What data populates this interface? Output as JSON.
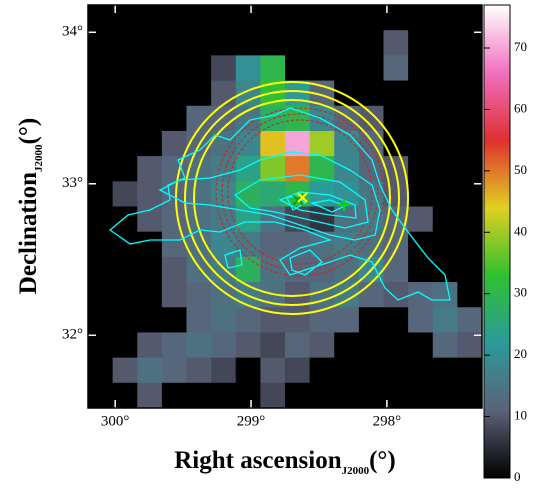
{
  "chart_data": {
    "type": "heatmap",
    "xlabel": "Right ascension",
    "xlabel_sub": "J2000",
    "xlabel_unit": "(°)",
    "ylabel": "Declination",
    "ylabel_sub": "J2000",
    "ylabel_unit": "(°)",
    "xlim": [
      300.2,
      297.3
    ],
    "ylim": [
      31.52,
      34.18
    ],
    "xticks": [
      {
        "value": 300,
        "label": "300°"
      },
      {
        "value": 299,
        "label": "299°"
      },
      {
        "value": 298,
        "label": "298°"
      }
    ],
    "yticks": [
      {
        "value": 32,
        "label": "32°"
      },
      {
        "value": 33,
        "label": "33°"
      },
      {
        "value": 34,
        "label": "34°"
      }
    ],
    "clim": [
      0,
      77
    ],
    "cticks": [
      0,
      10,
      20,
      30,
      40,
      50,
      60,
      70
    ],
    "colormap": [
      "#000000",
      "#5c6278",
      "#2a9a9a",
      "#30c030",
      "#e0d020",
      "#e03030",
      "#f070c0",
      "#ffffff"
    ],
    "z": [
      [
        0,
        0,
        0,
        0,
        0,
        0,
        0,
        0,
        0,
        0,
        0,
        0,
        0,
        0,
        0,
        0
      ],
      [
        0,
        0,
        0,
        0,
        0,
        0,
        0,
        0,
        0,
        0,
        0,
        0,
        10,
        0,
        0,
        0
      ],
      [
        0,
        0,
        0,
        0,
        0,
        8,
        20,
        30,
        0,
        0,
        0,
        0,
        12,
        0,
        0,
        0
      ],
      [
        0,
        0,
        0,
        0,
        0,
        10,
        18,
        32,
        22,
        12,
        0,
        0,
        0,
        0,
        0,
        0
      ],
      [
        0,
        0,
        0,
        0,
        12,
        12,
        15,
        28,
        30,
        18,
        12,
        10,
        0,
        0,
        0,
        0
      ],
      [
        0,
        0,
        0,
        10,
        12,
        14,
        18,
        45,
        70,
        40,
        18,
        12,
        0,
        0,
        0,
        0
      ],
      [
        0,
        0,
        10,
        12,
        14,
        16,
        24,
        38,
        50,
        30,
        18,
        12,
        10,
        0,
        0,
        0
      ],
      [
        0,
        8,
        10,
        12,
        14,
        18,
        28,
        26,
        30,
        22,
        20,
        15,
        10,
        0,
        0,
        0
      ],
      [
        0,
        0,
        10,
        12,
        14,
        16,
        24,
        14,
        8,
        6,
        14,
        16,
        12,
        10,
        0,
        0
      ],
      [
        0,
        0,
        0,
        12,
        14,
        18,
        16,
        12,
        12,
        14,
        16,
        14,
        12,
        0,
        0,
        0
      ],
      [
        0,
        0,
        0,
        10,
        14,
        16,
        28,
        14,
        12,
        12,
        14,
        18,
        12,
        0,
        0,
        0
      ],
      [
        0,
        0,
        0,
        10,
        12,
        14,
        16,
        14,
        10,
        14,
        16,
        12,
        10,
        12,
        14,
        0
      ],
      [
        0,
        0,
        0,
        0,
        12,
        14,
        12,
        10,
        10,
        12,
        12,
        0,
        0,
        12,
        16,
        12
      ],
      [
        0,
        0,
        10,
        12,
        14,
        12,
        10,
        8,
        12,
        10,
        0,
        0,
        0,
        0,
        12,
        10
      ],
      [
        0,
        10,
        14,
        12,
        10,
        8,
        0,
        10,
        8,
        0,
        0,
        0,
        0,
        0,
        0,
        0
      ],
      [
        0,
        0,
        10,
        0,
        0,
        0,
        0,
        8,
        0,
        0,
        0,
        0,
        0,
        0,
        0,
        0
      ]
    ]
  }
}
